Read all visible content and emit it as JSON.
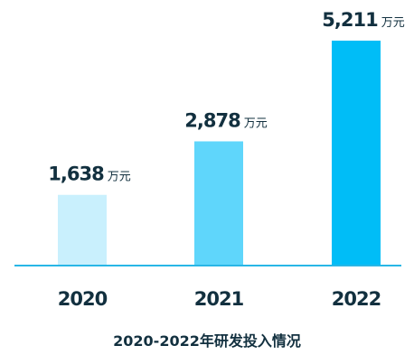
{
  "chart_data": {
    "type": "bar",
    "title": "2020-2022年研发投入情况",
    "categories": [
      "2020",
      "2021",
      "2022"
    ],
    "values": [
      1638,
      2878,
      5211
    ],
    "value_labels": [
      "1,638",
      "2,878",
      "5,211"
    ],
    "unit": "万元",
    "colors": [
      "#c9f0fd",
      "#5fd6fb",
      "#00bdf7"
    ],
    "axis_color": "#29b6e6",
    "ylim": [
      0,
      5211
    ],
    "grid": false
  }
}
